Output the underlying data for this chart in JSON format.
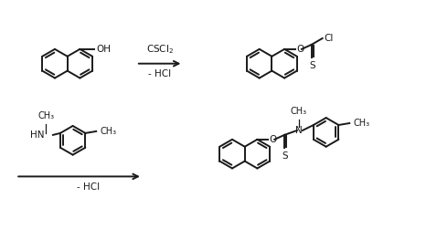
{
  "background_color": "#ffffff",
  "line_color": "#1a1a1a",
  "line_width": 1.4,
  "font_size": 7.5,
  "step1_reagent": "CSCl$_2$",
  "step1_byproduct": "- HCl",
  "step2_byproduct": "- HCl",
  "figsize": [
    4.78,
    2.74
  ],
  "dpi": 100
}
